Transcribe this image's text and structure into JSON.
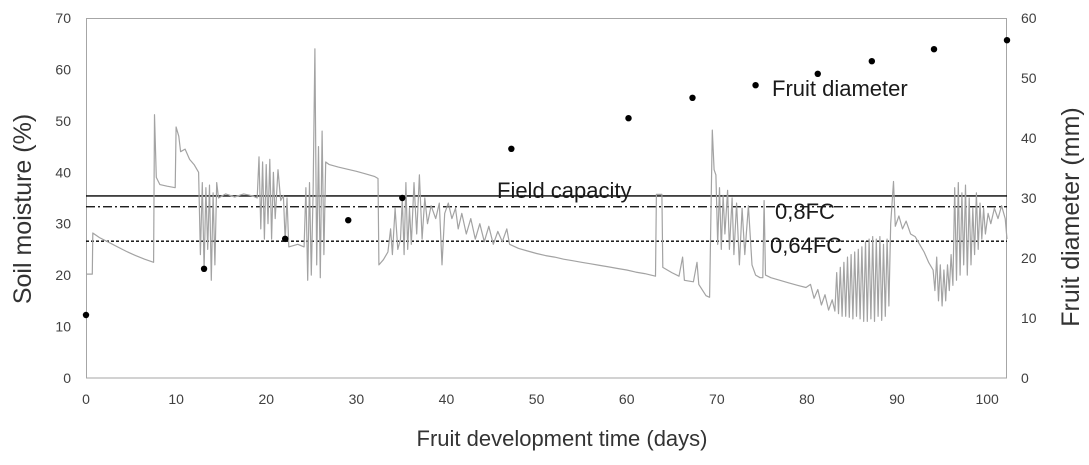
{
  "chart_data": {
    "type": "line",
    "grid": false,
    "x_axis": {
      "label": "Fruit development time (days)",
      "range": [
        0,
        102.2
      ],
      "ticks": [
        0,
        10,
        20,
        30,
        40,
        50,
        60,
        70,
        80,
        90,
        100
      ]
    },
    "y_axis_left": {
      "label": "Soil moisture (%)",
      "range": [
        0,
        70
      ],
      "ticks": [
        0,
        10,
        20,
        30,
        40,
        50,
        60,
        70
      ]
    },
    "y_axis_right": {
      "label": "Fruit diameter (mm)",
      "range": [
        0,
        60
      ],
      "ticks": [
        0,
        10,
        20,
        30,
        40,
        50,
        60
      ]
    },
    "reference_lines": [
      {
        "label": "Field capacity",
        "axis": "left",
        "value": 35.4,
        "style": "solid",
        "color": "#000000"
      },
      {
        "label": "0,8FC",
        "axis": "left",
        "value": 33.3,
        "style": "dash-dot",
        "color": "#000000"
      },
      {
        "label": "0,64FC",
        "axis": "left",
        "value": 26.6,
        "style": "dotted",
        "color": "#000000"
      }
    ],
    "series": [
      {
        "type": "line",
        "axis": "left",
        "color": "#a3a3a3",
        "points": [
          [
            0,
            20.2
          ],
          [
            0.7,
            20.2
          ],
          [
            0.75,
            28.2
          ],
          [
            1.5,
            27.3
          ],
          [
            2.5,
            26.4
          ],
          [
            3.5,
            25.5
          ],
          [
            4.5,
            24.6
          ],
          [
            5.5,
            23.8
          ],
          [
            6.5,
            23.1
          ],
          [
            7.5,
            22.5
          ],
          [
            7.6,
            51.2
          ],
          [
            7.8,
            39
          ],
          [
            8.2,
            37.6
          ],
          [
            9,
            37.3
          ],
          [
            9.9,
            37
          ],
          [
            10.0,
            48.8
          ],
          [
            10.3,
            47
          ],
          [
            10.5,
            44
          ],
          [
            11,
            44.5
          ],
          [
            11.5,
            42.5
          ],
          [
            12,
            41.5
          ],
          [
            12.5,
            40
          ],
          [
            12.7,
            24
          ],
          [
            12.9,
            38
          ],
          [
            13.1,
            21
          ],
          [
            13.3,
            37
          ],
          [
            13.5,
            25
          ],
          [
            13.7,
            37.5
          ],
          [
            13.9,
            19
          ],
          [
            14.1,
            36
          ],
          [
            14.3,
            22
          ],
          [
            14.5,
            38
          ],
          [
            14.7,
            35
          ],
          [
            15.5,
            35.8
          ],
          [
            16.5,
            35.2
          ],
          [
            17.5,
            35.8
          ],
          [
            18.5,
            35.4
          ],
          [
            19,
            35
          ],
          [
            19.2,
            43
          ],
          [
            19.4,
            29
          ],
          [
            19.6,
            42
          ],
          [
            19.8,
            27
          ],
          [
            20.0,
            41.5
          ],
          [
            20.2,
            30
          ],
          [
            20.4,
            42.5
          ],
          [
            20.6,
            27
          ],
          [
            20.8,
            40
          ],
          [
            21.0,
            31
          ],
          [
            21.3,
            40.5
          ],
          [
            21.6,
            34.5
          ],
          [
            21.9,
            35.5
          ],
          [
            22.1,
            26.5
          ],
          [
            22.3,
            35
          ],
          [
            22.5,
            25.5
          ],
          [
            23.5,
            26
          ],
          [
            24.2,
            25.5
          ],
          [
            24.4,
            37
          ],
          [
            24.6,
            19
          ],
          [
            24.8,
            38
          ],
          [
            25.0,
            20
          ],
          [
            25.2,
            36
          ],
          [
            25.4,
            64
          ],
          [
            25.6,
            22
          ],
          [
            25.8,
            45
          ],
          [
            26.0,
            19.5
          ],
          [
            26.2,
            48
          ],
          [
            26.4,
            24
          ],
          [
            26.6,
            42
          ],
          [
            27,
            41.5
          ],
          [
            28,
            41
          ],
          [
            29,
            40.6
          ],
          [
            30,
            40.2
          ],
          [
            31,
            39.7
          ],
          [
            32,
            39.2
          ],
          [
            32.4,
            38.8
          ],
          [
            32.5,
            22
          ],
          [
            33,
            23
          ],
          [
            33.5,
            24.5
          ],
          [
            33.8,
            29
          ],
          [
            34,
            24
          ],
          [
            34.3,
            33
          ],
          [
            34.6,
            25
          ],
          [
            34.9,
            27
          ],
          [
            35.1,
            35
          ],
          [
            35.3,
            24
          ],
          [
            35.5,
            38
          ],
          [
            35.7,
            25
          ],
          [
            35.9,
            33
          ],
          [
            36.1,
            26
          ],
          [
            36.4,
            38
          ],
          [
            36.7,
            28
          ],
          [
            37,
            39.5
          ],
          [
            37.3,
            27
          ],
          [
            37.6,
            35
          ],
          [
            37.9,
            30
          ],
          [
            38.3,
            33.5
          ],
          [
            38.8,
            31
          ],
          [
            39.2,
            34
          ],
          [
            39.5,
            22
          ],
          [
            39.8,
            32
          ],
          [
            40.2,
            34
          ],
          [
            40.6,
            31
          ],
          [
            41,
            33
          ],
          [
            41.3,
            29
          ],
          [
            41.7,
            32
          ],
          [
            42.2,
            28
          ],
          [
            42.7,
            31
          ],
          [
            43.2,
            27
          ],
          [
            43.7,
            30
          ],
          [
            44.2,
            26.5
          ],
          [
            44.7,
            29.5
          ],
          [
            45.2,
            26
          ],
          [
            45.7,
            28.5
          ],
          [
            46.2,
            26.5
          ],
          [
            46.7,
            29
          ],
          [
            47,
            26
          ],
          [
            48,
            25.2
          ],
          [
            49,
            24.7
          ],
          [
            50,
            24.2
          ],
          [
            51,
            23.8
          ],
          [
            52,
            23.5
          ],
          [
            53,
            23.1
          ],
          [
            54,
            22.8
          ],
          [
            55,
            22.5
          ],
          [
            56,
            22.2
          ],
          [
            57,
            21.9
          ],
          [
            58,
            21.6
          ],
          [
            59,
            21.3
          ],
          [
            60,
            21
          ],
          [
            61,
            20.6
          ],
          [
            62,
            20.3
          ],
          [
            63.2,
            19.8
          ],
          [
            63.3,
            35.7
          ],
          [
            63.9,
            35.7
          ],
          [
            64.0,
            21.5
          ],
          [
            65,
            20.5
          ],
          [
            65.8,
            19.8
          ],
          [
            66.2,
            23.5
          ],
          [
            66.4,
            19
          ],
          [
            67.4,
            18.7
          ],
          [
            67.8,
            22.5
          ],
          [
            68,
            18.2
          ],
          [
            68.8,
            16
          ],
          [
            69.2,
            15.7
          ],
          [
            69.5,
            48.2
          ],
          [
            69.7,
            40.5
          ],
          [
            69.9,
            39.5
          ],
          [
            70.1,
            26
          ],
          [
            70.3,
            37
          ],
          [
            70.5,
            25
          ],
          [
            70.7,
            35.5
          ],
          [
            70.9,
            28
          ],
          [
            71.2,
            36.5
          ],
          [
            71.4,
            25
          ],
          [
            71.7,
            35
          ],
          [
            71.9,
            24
          ],
          [
            72.2,
            34
          ],
          [
            72.5,
            22
          ],
          [
            72.8,
            33
          ],
          [
            73.1,
            24
          ],
          [
            73.5,
            33.5
          ],
          [
            73.9,
            22
          ],
          [
            74.3,
            20
          ],
          [
            74.8,
            19.5
          ],
          [
            75.1,
            19.5
          ],
          [
            75.25,
            34.5
          ],
          [
            75.4,
            20
          ],
          [
            76,
            19.5
          ],
          [
            77,
            19
          ],
          [
            78,
            18.5
          ],
          [
            79,
            18
          ],
          [
            79.9,
            17.6
          ],
          [
            80.4,
            18.2
          ],
          [
            80.8,
            15.5
          ],
          [
            81.2,
            17.2
          ],
          [
            81.6,
            14.2
          ],
          [
            82,
            16.2
          ],
          [
            82.4,
            13.2
          ],
          [
            82.8,
            15.2
          ],
          [
            83.1,
            13
          ],
          [
            83.3,
            20.5
          ],
          [
            83.5,
            12.5
          ],
          [
            83.7,
            21.5
          ],
          [
            83.9,
            12
          ],
          [
            84.1,
            22.5
          ],
          [
            84.3,
            12
          ],
          [
            84.5,
            23.5
          ],
          [
            84.7,
            11.8
          ],
          [
            84.9,
            24
          ],
          [
            85.1,
            11.5
          ],
          [
            85.3,
            24.5
          ],
          [
            85.5,
            12
          ],
          [
            85.7,
            25
          ],
          [
            85.9,
            11.5
          ],
          [
            86.1,
            25.5
          ],
          [
            86.3,
            11
          ],
          [
            86.5,
            26.5
          ],
          [
            86.7,
            11
          ],
          [
            86.9,
            27
          ],
          [
            87.1,
            11.5
          ],
          [
            87.3,
            27.5
          ],
          [
            87.5,
            11
          ],
          [
            87.7,
            27
          ],
          [
            87.9,
            12
          ],
          [
            88.1,
            27.5
          ],
          [
            88.3,
            11.2
          ],
          [
            88.5,
            26
          ],
          [
            88.7,
            12
          ],
          [
            88.9,
            27
          ],
          [
            89.1,
            14
          ],
          [
            89.3,
            30
          ],
          [
            89.6,
            38.2
          ],
          [
            89.8,
            29.5
          ],
          [
            90.2,
            31.5
          ],
          [
            90.6,
            29
          ],
          [
            91,
            30.5
          ],
          [
            91.5,
            28
          ],
          [
            92,
            27.5
          ],
          [
            92.5,
            26
          ],
          [
            93,
            24.5
          ],
          [
            93.5,
            22.5
          ],
          [
            94,
            21
          ],
          [
            94.2,
            17
          ],
          [
            94.4,
            23.5
          ],
          [
            94.6,
            15
          ],
          [
            94.8,
            22
          ],
          [
            95,
            14
          ],
          [
            95.2,
            21
          ],
          [
            95.4,
            15
          ],
          [
            95.6,
            22
          ],
          [
            95.8,
            17
          ],
          [
            96,
            24
          ],
          [
            96.2,
            18
          ],
          [
            96.4,
            37
          ],
          [
            96.6,
            19
          ],
          [
            96.8,
            38
          ],
          [
            97,
            20
          ],
          [
            97.2,
            36
          ],
          [
            97.4,
            22
          ],
          [
            97.6,
            37.5
          ],
          [
            97.8,
            20
          ],
          [
            98,
            35
          ],
          [
            98.2,
            22
          ],
          [
            98.4,
            33
          ],
          [
            98.6,
            24
          ],
          [
            98.8,
            36
          ],
          [
            99,
            25
          ],
          [
            99.2,
            34
          ],
          [
            99.4,
            27
          ],
          [
            99.6,
            33
          ],
          [
            99.8,
            28
          ],
          [
            100.1,
            32
          ],
          [
            100.4,
            30
          ],
          [
            100.8,
            33
          ],
          [
            101.2,
            31
          ],
          [
            101.6,
            33.5
          ],
          [
            102,
            31
          ],
          [
            102.2,
            27
          ]
        ]
      },
      {
        "type": "scatter",
        "axis": "right",
        "name": "Fruit diameter",
        "color": "#000000",
        "points": [
          [
            0,
            10.5
          ],
          [
            13.1,
            18.2
          ],
          [
            22.1,
            23.2
          ],
          [
            29.1,
            26.3
          ],
          [
            35.1,
            30.0
          ],
          [
            47.2,
            38.2
          ],
          [
            60.2,
            43.3
          ],
          [
            67.3,
            46.7
          ],
          [
            74.3,
            48.8
          ],
          [
            81.2,
            50.7
          ],
          [
            87.2,
            52.8
          ],
          [
            94.1,
            54.8
          ],
          [
            102.2,
            56.3
          ]
        ]
      }
    ]
  }
}
